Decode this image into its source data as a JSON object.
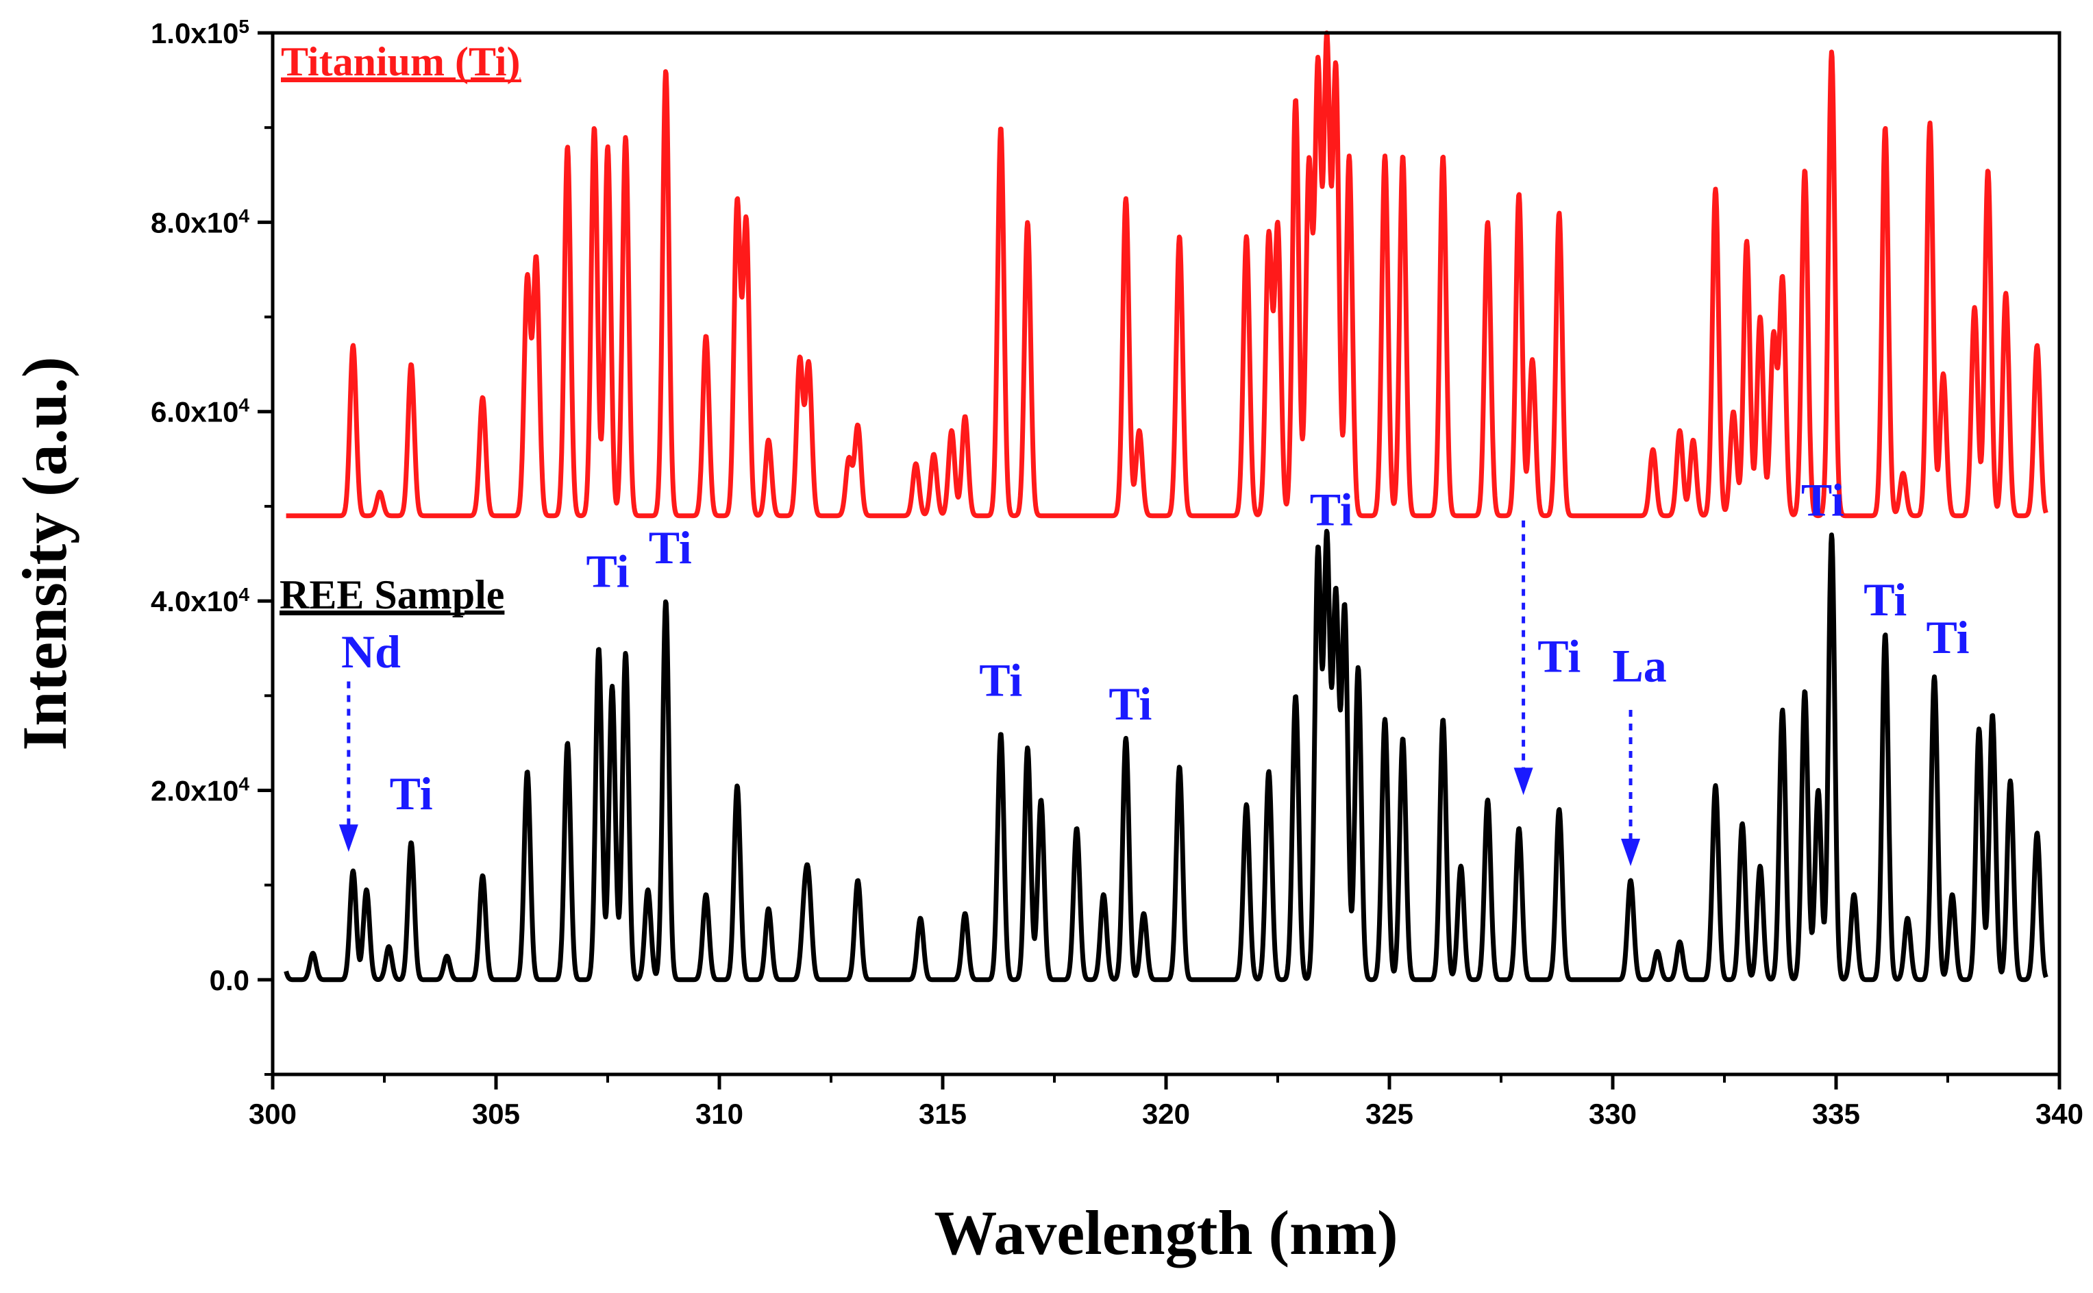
{
  "chart_data": {
    "type": "line",
    "xlabel": "Wavelength (nm)",
    "ylabel": "Intensity (a.u.)",
    "xlim": [
      300,
      340
    ],
    "ylim": [
      -10000,
      100000
    ],
    "x_ticks": [
      300,
      305,
      310,
      315,
      320,
      325,
      330,
      335,
      340
    ],
    "x_tick_labels": [
      "300",
      "305",
      "310",
      "315",
      "320",
      "325",
      "330",
      "335",
      "340"
    ],
    "y_ticks": [
      {
        "value": 0,
        "mantissa": "0.0",
        "exp": ""
      },
      {
        "value": 20000,
        "mantissa": "2.0x10",
        "exp": "4"
      },
      {
        "value": 40000,
        "mantissa": "4.0x10",
        "exp": "4"
      },
      {
        "value": 60000,
        "mantissa": "6.0x10",
        "exp": "4"
      },
      {
        "value": 80000,
        "mantissa": "8.0x10",
        "exp": "4"
      },
      {
        "value": 100000,
        "mantissa": "1.0x10",
        "exp": "5"
      }
    ],
    "grid": false,
    "legend_placement": "inline labels, top-left of each trace",
    "series": [
      {
        "name": "Titanium (Ti)",
        "color": "#ff1a1a",
        "baseline": 49000,
        "peaks": [
          [
            301.8,
            67000
          ],
          [
            302.4,
            51500
          ],
          [
            303.1,
            65000
          ],
          [
            304.7,
            61500
          ],
          [
            305.7,
            74000
          ],
          [
            305.9,
            76000
          ],
          [
            306.6,
            88000
          ],
          [
            307.2,
            90000
          ],
          [
            307.5,
            88000
          ],
          [
            307.9,
            89000
          ],
          [
            308.8,
            96000
          ],
          [
            309.7,
            68000
          ],
          [
            310.4,
            82000
          ],
          [
            310.6,
            80000
          ],
          [
            311.1,
            57000
          ],
          [
            311.8,
            65500
          ],
          [
            312.0,
            65000
          ],
          [
            312.9,
            55000
          ],
          [
            313.1,
            58500
          ],
          [
            314.4,
            54500
          ],
          [
            314.8,
            55500
          ],
          [
            315.2,
            58000
          ],
          [
            315.5,
            59500
          ],
          [
            316.3,
            90000
          ],
          [
            316.9,
            80000
          ],
          [
            319.1,
            82500
          ],
          [
            319.4,
            58000
          ],
          [
            320.3,
            78500
          ],
          [
            321.8,
            78500
          ],
          [
            322.3,
            78500
          ],
          [
            322.5,
            79500
          ],
          [
            322.9,
            93000
          ],
          [
            323.2,
            86000
          ],
          [
            323.4,
            96000
          ],
          [
            323.6,
            98500
          ],
          [
            323.8,
            96000
          ],
          [
            324.1,
            87000
          ],
          [
            324.9,
            87000
          ],
          [
            325.3,
            87000
          ],
          [
            326.2,
            87000
          ],
          [
            327.2,
            80000
          ],
          [
            327.9,
            83000
          ],
          [
            328.2,
            65500
          ],
          [
            328.8,
            81000
          ],
          [
            330.9,
            56000
          ],
          [
            331.5,
            58000
          ],
          [
            331.8,
            57000
          ],
          [
            332.3,
            83500
          ],
          [
            332.7,
            60000
          ],
          [
            333.0,
            78000
          ],
          [
            333.3,
            70000
          ],
          [
            333.6,
            68000
          ],
          [
            333.8,
            74000
          ],
          [
            334.3,
            85500
          ],
          [
            334.9,
            98000
          ],
          [
            336.1,
            90000
          ],
          [
            336.5,
            53500
          ],
          [
            337.1,
            90500
          ],
          [
            337.4,
            64000
          ],
          [
            338.1,
            71000
          ],
          [
            338.4,
            85500
          ],
          [
            338.8,
            72500
          ],
          [
            339.5,
            67000
          ]
        ]
      },
      {
        "name": "REE Sample",
        "color": "#000000",
        "baseline": 0,
        "peaks": [
          [
            300.2,
            2500
          ],
          [
            300.9,
            2800
          ],
          [
            301.8,
            11500
          ],
          [
            302.1,
            9500
          ],
          [
            302.6,
            3500
          ],
          [
            303.1,
            14500
          ],
          [
            303.9,
            2500
          ],
          [
            304.7,
            11000
          ],
          [
            305.7,
            22000
          ],
          [
            306.6,
            25000
          ],
          [
            307.3,
            35000
          ],
          [
            307.6,
            31000
          ],
          [
            307.9,
            34500
          ],
          [
            308.4,
            9500
          ],
          [
            308.8,
            40000
          ],
          [
            309.7,
            9000
          ],
          [
            310.4,
            20500
          ],
          [
            311.1,
            7500
          ],
          [
            311.9,
            6500
          ],
          [
            312.0,
            9000
          ],
          [
            313.1,
            10500
          ],
          [
            314.5,
            6500
          ],
          [
            315.5,
            7000
          ],
          [
            316.3,
            26000
          ],
          [
            316.9,
            24500
          ],
          [
            317.2,
            19000
          ],
          [
            318.0,
            16000
          ],
          [
            318.6,
            9000
          ],
          [
            319.1,
            25500
          ],
          [
            319.5,
            7000
          ],
          [
            320.3,
            22500
          ],
          [
            321.8,
            18500
          ],
          [
            322.3,
            22000
          ],
          [
            322.9,
            30000
          ],
          [
            323.4,
            45000
          ],
          [
            323.6,
            46000
          ],
          [
            323.8,
            40000
          ],
          [
            324.0,
            39000
          ],
          [
            324.3,
            33000
          ],
          [
            324.9,
            27500
          ],
          [
            325.3,
            25500
          ],
          [
            326.2,
            27500
          ],
          [
            326.6,
            12000
          ],
          [
            327.2,
            19000
          ],
          [
            327.9,
            16000
          ],
          [
            328.8,
            18000
          ],
          [
            330.4,
            10500
          ],
          [
            331.0,
            3000
          ],
          [
            331.5,
            4000
          ],
          [
            332.3,
            20500
          ],
          [
            332.9,
            16500
          ],
          [
            333.3,
            12000
          ],
          [
            333.8,
            28500
          ],
          [
            334.3,
            30500
          ],
          [
            334.6,
            20000
          ],
          [
            334.9,
            47000
          ],
          [
            335.4,
            9000
          ],
          [
            336.1,
            36500
          ],
          [
            336.6,
            6500
          ],
          [
            337.2,
            32000
          ],
          [
            337.6,
            9000
          ],
          [
            338.2,
            26500
          ],
          [
            338.5,
            28000
          ],
          [
            338.9,
            21000
          ],
          [
            339.5,
            15500
          ]
        ]
      }
    ],
    "legend": [
      {
        "label": "Titanium (Ti)",
        "color": "#ff1a1a"
      },
      {
        "label": "REE Sample",
        "color": "#000000"
      }
    ],
    "annotations": [
      {
        "label": "Ti",
        "x": 303.1,
        "y": 18000
      },
      {
        "label": "Ti",
        "x": 307.5,
        "y": 41500
      },
      {
        "label": "Ti",
        "x": 308.9,
        "y": 44000
      },
      {
        "label": "Ti",
        "x": 316.3,
        "y": 30000
      },
      {
        "label": "Ti",
        "x": 319.2,
        "y": 27500
      },
      {
        "label": "Ti",
        "x": 323.7,
        "y": 48000
      },
      {
        "label": "Ti",
        "x": 328.8,
        "y": 32500
      },
      {
        "label": "Ti",
        "x": 334.7,
        "y": 49000
      },
      {
        "label": "Ti",
        "x": 336.1,
        "y": 38500
      },
      {
        "label": "Ti",
        "x": 337.5,
        "y": 34500
      },
      {
        "label": "Nd",
        "x": 302.2,
        "y": 33000
      },
      {
        "label": "La",
        "x": 330.6,
        "y": 31500
      }
    ],
    "arrows": [
      {
        "x": 301.7,
        "y_from": 31500,
        "y_to": 13500
      },
      {
        "x": 328.0,
        "y_from": 48500,
        "y_to": 19500
      },
      {
        "x": 330.4,
        "y_from": 28500,
        "y_to": 12000
      }
    ],
    "annotation_color": "#1a1aff"
  }
}
